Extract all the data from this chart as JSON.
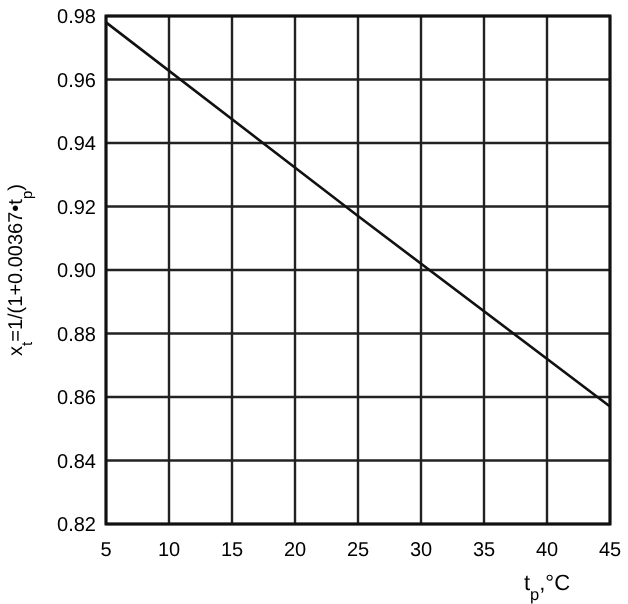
{
  "chart_data": {
    "type": "line",
    "xlabel": "t$_{p}$,°C",
    "ylabel": "x$_{t}$=1/(1+0.00367•t$_{p}$)",
    "x": [
      5,
      25,
      45
    ],
    "series": [
      {
        "color": "#111111",
        "values": [
          0.978,
          0.917,
          0.857
        ]
      }
    ],
    "xlim": [
      5,
      45
    ],
    "xticks": [
      5,
      10,
      15,
      20,
      25,
      30,
      35,
      40,
      45
    ],
    "ylim": [
      0.82,
      0.98
    ],
    "yticks": [
      {
        "value": 0.82,
        "label": "0.82"
      },
      {
        "value": 0.84,
        "label": "0.84"
      },
      {
        "value": 0.86,
        "label": "0.86"
      },
      {
        "value": 0.88,
        "label": "0.88"
      },
      {
        "value": 0.9,
        "label": "0.90"
      },
      {
        "value": 0.92,
        "label": "0.92"
      },
      {
        "value": 0.94,
        "label": "0.94"
      },
      {
        "value": 0.96,
        "label": "0.96"
      },
      {
        "value": 0.98,
        "label": "0.98"
      }
    ],
    "grid": true,
    "marker": "none",
    "line_style": "solid"
  }
}
